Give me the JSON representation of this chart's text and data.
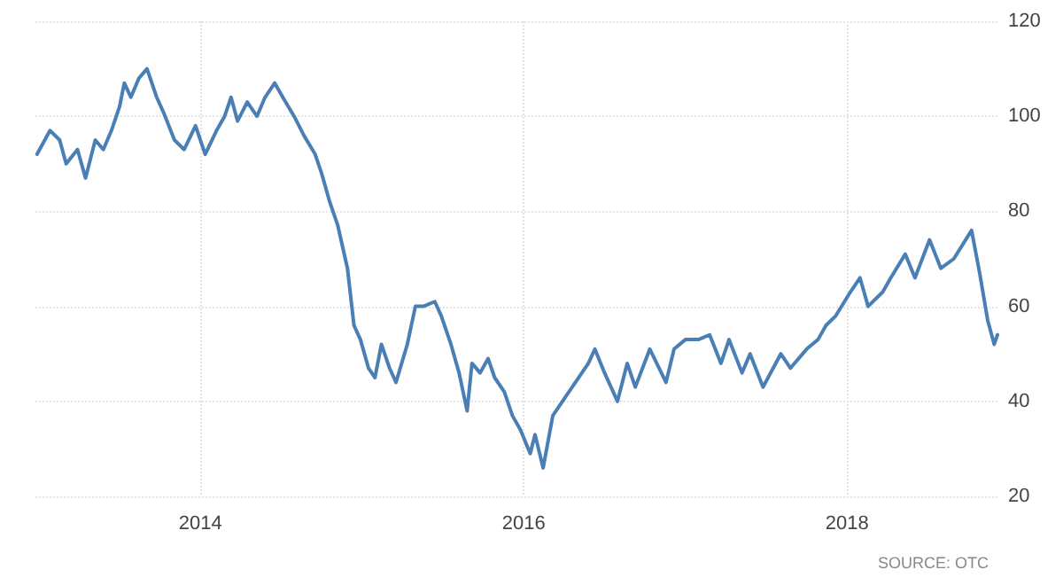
{
  "chart_data": {
    "type": "line",
    "annotations": [
      "SOURCE: OTC"
    ],
    "x": [
      2012.99,
      2013.07,
      2013.13,
      2013.17,
      2013.24,
      2013.29,
      2013.35,
      2013.4,
      2013.45,
      2013.5,
      2013.53,
      2013.57,
      2013.62,
      2013.67,
      2013.73,
      2013.77,
      2013.84,
      2013.9,
      2013.97,
      2014.03,
      2014.1,
      2014.15,
      2014.19,
      2014.23,
      2014.29,
      2014.35,
      2014.4,
      2014.46,
      2014.51,
      2014.58,
      2014.64,
      2014.71,
      2014.75,
      2014.8,
      2014.85,
      2014.91,
      2014.95,
      2014.99,
      2015.04,
      2015.08,
      2015.12,
      2015.17,
      2015.21,
      2015.28,
      2015.33,
      2015.38,
      2015.45,
      2015.49,
      2015.55,
      2015.6,
      2015.65,
      2015.68,
      2015.73,
      2015.78,
      2015.82,
      2015.88,
      2015.93,
      2015.98,
      2016.04,
      2016.07,
      2016.12,
      2016.18,
      2016.26,
      2016.4,
      2016.44,
      2016.5,
      2016.58,
      2016.64,
      2016.69,
      2016.78,
      2016.88,
      2016.93,
      2017.0,
      2017.08,
      2017.15,
      2017.22,
      2017.27,
      2017.35,
      2017.4,
      2017.48,
      2017.59,
      2017.65,
      2017.75,
      2017.82,
      2017.87,
      2017.93,
      2018.02,
      2018.08,
      2018.13,
      2018.22,
      2018.27,
      2018.36,
      2018.42,
      2018.51,
      2018.58,
      2018.66,
      2018.77,
      2018.82,
      2018.87,
      2018.91,
      2018.93
    ],
    "series": [
      {
        "color": "#4a7fb5",
        "values": [
          92,
          97,
          95,
          90,
          93,
          87,
          95,
          93,
          97,
          102,
          107,
          104,
          108,
          110,
          104,
          101,
          95,
          93,
          98,
          92,
          97,
          100,
          104,
          99,
          103,
          100,
          104,
          107,
          104,
          100,
          96,
          92,
          88,
          82,
          77,
          68,
          56,
          53,
          47,
          45,
          52,
          47,
          44,
          52,
          60,
          60,
          61,
          58,
          52,
          46,
          38,
          48,
          46,
          49,
          45,
          42,
          37,
          34,
          29,
          33,
          26,
          37,
          41,
          48,
          51,
          46,
          40,
          48,
          43,
          51,
          44,
          51,
          53,
          53,
          54,
          48,
          53,
          46,
          50,
          43,
          50,
          47,
          51,
          53,
          56,
          58,
          63,
          66,
          60,
          63,
          66,
          71,
          66,
          74,
          68,
          70,
          76,
          67,
          57,
          52,
          54
        ]
      }
    ],
    "xlim": [
      2012.98,
      2018.93
    ],
    "xticks": [
      2014,
      2016,
      2018
    ],
    "ylim": [
      20,
      120
    ],
    "yticks": [
      20,
      40,
      60,
      80,
      100,
      120
    ],
    "grid": true,
    "marker": "none",
    "line_style": "solid"
  }
}
